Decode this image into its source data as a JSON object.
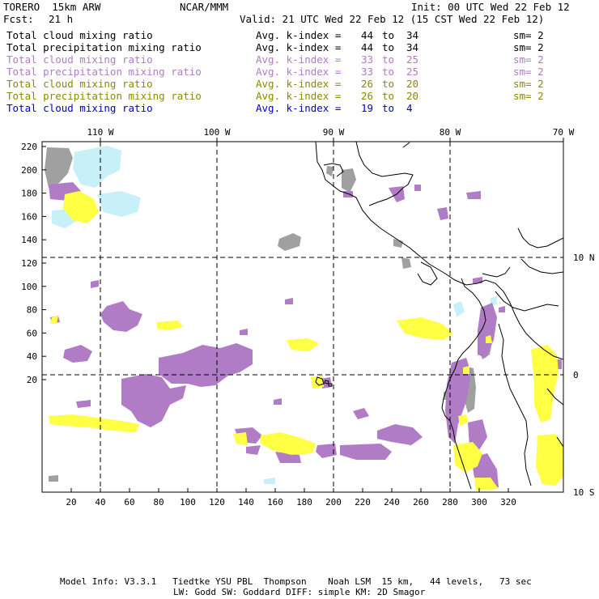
{
  "header": {
    "model": "TORERO  15km ARW",
    "institution": "NCAR/MMM",
    "init": "Init: 00 UTC Wed 22 Feb 12",
    "fcst_label": "Fcst:",
    "fcst_value": "21 h",
    "valid": "Valid: 21 UTC Wed 22 Feb 12 (15 CST Wed 22 Feb 12)"
  },
  "legend": [
    {
      "field": "Total cloud mixing ratio",
      "kindex": "Avg. k-index =",
      "from": "44",
      "to_word": "to",
      "to": "34",
      "sm": "sm= 2",
      "color": "#000000"
    },
    {
      "field": "Total precipitation mixing ratio",
      "kindex": "Avg. k-index =",
      "from": "44",
      "to_word": "to",
      "to": "34",
      "sm": "sm= 2",
      "color": "#000000"
    },
    {
      "field": "Total cloud mixing ratio",
      "kindex": "Avg. k-index =",
      "from": "33",
      "to_word": "to",
      "to": "25",
      "sm": "sm= 2",
      "color": "#b07cc6"
    },
    {
      "field": "Total precipitation mixing ratio",
      "kindex": "Avg. k-index =",
      "from": "33",
      "to_word": "to",
      "to": "25",
      "sm": "sm= 2",
      "color": "#b07cc6"
    },
    {
      "field": "Total cloud mixing ratio",
      "kindex": "Avg. k-index =",
      "from": "26",
      "to_word": "to",
      "to": "20",
      "sm": "sm= 2",
      "color": "#8a8a00"
    },
    {
      "field": "Total precipitation mixing ratio",
      "kindex": "Avg. k-index =",
      "from": "26",
      "to_word": "to",
      "to": "20",
      "sm": "sm= 2",
      "color": "#8a8a00"
    },
    {
      "field": "Total cloud mixing ratio",
      "kindex": "Avg. k-index =",
      "from": "19",
      "to_word": "to",
      "to": "4",
      "sm": "",
      "color": "#0000cc"
    }
  ],
  "map": {
    "top_lon_labels": [
      "110 W",
      "100 W",
      "90 W",
      "80 W",
      "70 W"
    ],
    "right_lat_labels": [
      "10 N",
      "0",
      "10 S"
    ],
    "y_ticks": [
      "220",
      "200",
      "180",
      "160",
      "140",
      "120",
      "100",
      "80",
      "60",
      "40",
      "20"
    ],
    "x_ticks": [
      "20",
      "40",
      "60",
      "80",
      "100",
      "120",
      "140",
      "160",
      "180",
      "200",
      "220",
      "240",
      "260",
      "280",
      "300",
      "320"
    ],
    "colors": {
      "gray": "#a0a0a0",
      "light_blue": "#c8f0f8",
      "purple": "#b07cc6",
      "yellow": "#ffff44",
      "grid": "#000000"
    }
  },
  "footer": {
    "line1": "Model Info: V3.3.1   Tiedtke YSU PBL  Thompson    Noah LSM  15 km,   44 levels,   73 sec",
    "line2": "LW: Godd SW: Goddard DIFF: simple KM: 2D Smagor"
  }
}
